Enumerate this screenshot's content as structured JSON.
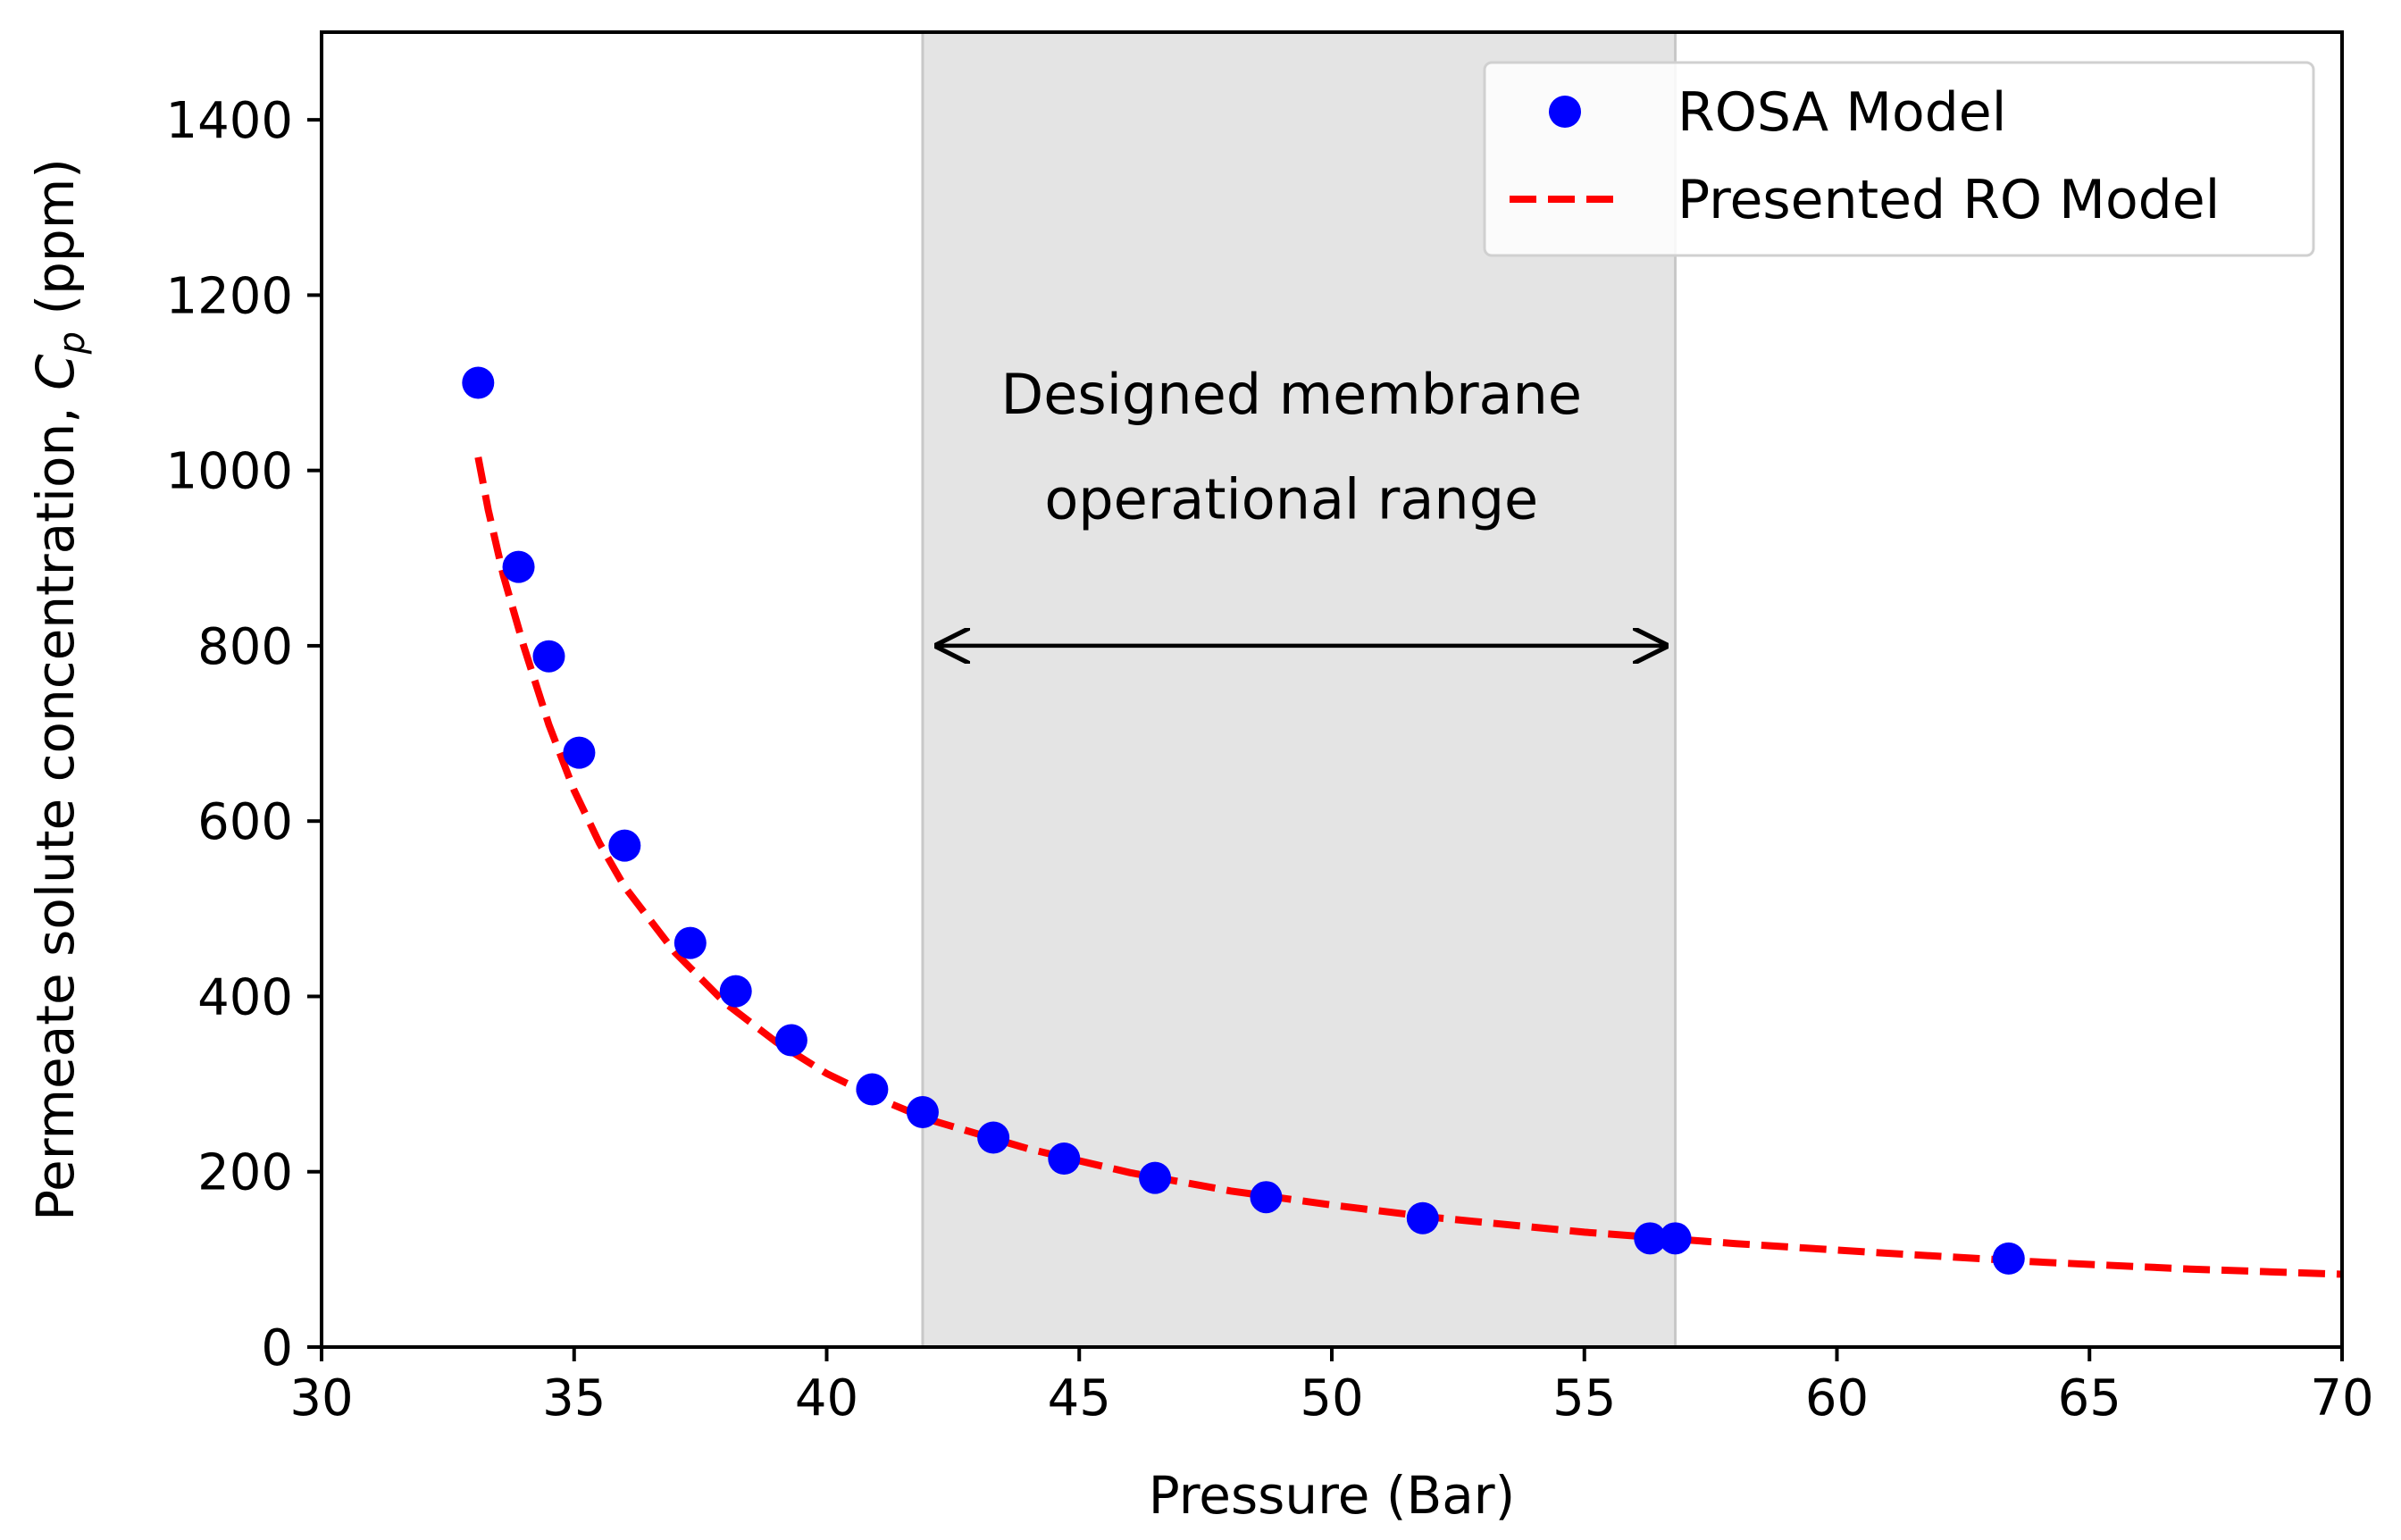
{
  "chart_data": {
    "type": "scatter",
    "title": "",
    "xlabel": "Pressure (Bar)",
    "ylabel": {
      "prefix": "Permeate solute concentration, ",
      "symbol": "C",
      "subscript": "p",
      "suffix": " (ppm)"
    },
    "xlim": [
      30,
      70
    ],
    "ylim": [
      0,
      1500
    ],
    "xticks": [
      30,
      35,
      40,
      45,
      50,
      55,
      60,
      65,
      70
    ],
    "yticks": [
      0,
      200,
      400,
      600,
      800,
      1000,
      1200,
      1400
    ],
    "grid": false,
    "legend_position": "top-right",
    "series": [
      {
        "name": "ROSA Model",
        "kind": "scatter",
        "color": "#0000ff",
        "x": [
          33.1,
          33.9,
          34.5,
          35.1,
          36.0,
          37.3,
          38.2,
          39.3,
          40.9,
          41.9,
          43.3,
          44.7,
          46.5,
          48.7,
          51.8,
          56.3,
          56.8,
          63.4
        ],
        "y": [
          1100,
          890,
          788,
          678,
          572,
          461,
          406,
          350,
          294,
          268,
          239,
          215,
          193,
          171,
          147,
          124,
          124,
          101
        ]
      },
      {
        "name": "Presented RO Model",
        "kind": "line",
        "style": "dashed",
        "color": "#ff0000",
        "x": [
          33.1,
          33.3,
          33.6,
          34.0,
          34.5,
          35.0,
          35.5,
          36.0,
          37.0,
          38.0,
          39.0,
          40.0,
          41.0,
          42.0,
          44.0,
          46.0,
          48.0,
          50.0,
          52.0,
          55.0,
          58.0,
          61.0,
          64.0,
          67.0,
          70.0
        ],
        "y": [
          1015,
          955,
          880,
          800,
          710,
          635,
          575,
          525,
          450,
          392,
          348,
          312,
          284,
          260,
          226,
          199,
          178,
          162,
          148,
          131,
          118,
          107,
          97,
          89,
          83
        ]
      }
    ],
    "shaded_region": {
      "x_start": 41.9,
      "x_end": 56.8,
      "color": "#e4e4e4",
      "edge_color": "#c8c8c8"
    },
    "annotation": {
      "lines": [
        "Designed membrane",
        "operational range"
      ],
      "x": 49.2,
      "line_y": [
        1065,
        945
      ],
      "arrow_x": [
        42.2,
        56.6
      ],
      "arrow_y": 800
    }
  }
}
